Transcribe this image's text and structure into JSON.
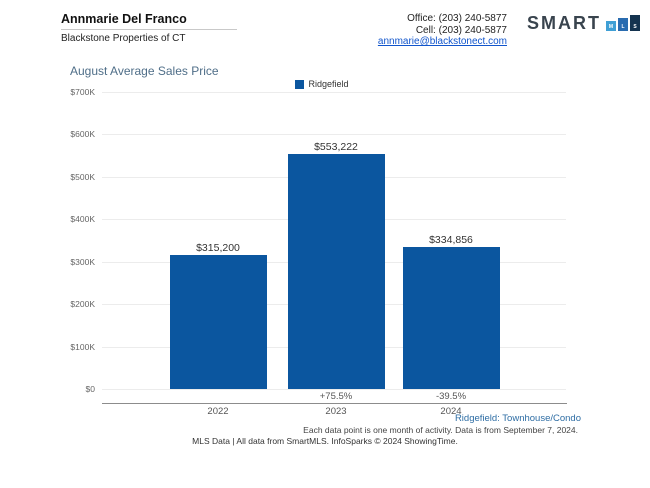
{
  "header": {
    "agent_name": "Annmarie Del Franco",
    "agency": "Blackstone Properties of CT",
    "office_phone": "Office: (203) 240-5877",
    "cell_phone": "Cell: (203) 240-5877",
    "email": "annmarie@blackstonect.com",
    "logo_word": "SMART",
    "logo_blocks": [
      {
        "letter": "M",
        "color": "#3f9fd5",
        "height": 10
      },
      {
        "letter": "L",
        "color": "#2a6cb0",
        "height": 13
      },
      {
        "letter": "S",
        "color": "#14334f",
        "height": 16
      }
    ]
  },
  "chart_data": {
    "type": "bar",
    "title": "August Average Sales Price",
    "legend": [
      {
        "label": "Ridgefield",
        "color": "#0b569f"
      }
    ],
    "legend_position": "top-center",
    "categories": [
      "2022",
      "2023",
      "2024"
    ],
    "values": [
      315200,
      553222,
      334856
    ],
    "value_labels": [
      "$315,200",
      "$553,222",
      "$334,856"
    ],
    "pct_change_labels": [
      "",
      "+75.5%",
      "-39.5%"
    ],
    "y_ticks": [
      "$700K",
      "$600K",
      "$500K",
      "$400K",
      "$300K",
      "$200K",
      "$100K",
      "$0"
    ],
    "ylim": [
      0,
      700000
    ],
    "bar_color": "#0b569f",
    "grid": true
  },
  "footer": {
    "series_note": "Ridgefield: Townhouse/Condo",
    "data_note": "Each data point is one month of activity. Data is from September 7, 2024.",
    "credit_line": "MLS Data | All data from SmartMLS. InfoSparks © 2024 ShowingTime."
  }
}
